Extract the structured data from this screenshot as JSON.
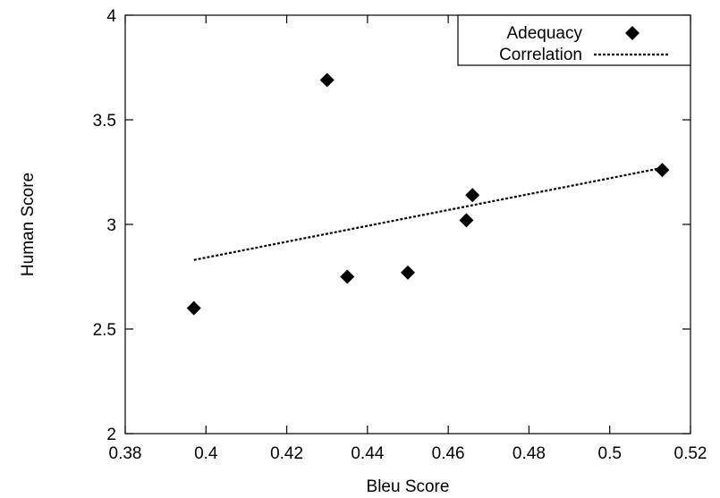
{
  "chart_data": {
    "type": "scatter",
    "xlabel": "Bleu Score",
    "ylabel": "Human Score",
    "xlim": [
      0.38,
      0.52
    ],
    "ylim": [
      2,
      4
    ],
    "x_ticks": [
      0.38,
      0.4,
      0.42,
      0.44,
      0.46,
      0.48,
      0.5,
      0.52
    ],
    "x_tick_labels": [
      "0.38",
      "0.4",
      "0.42",
      "0.44",
      "0.46",
      "0.48",
      "0.5",
      "0.52"
    ],
    "y_ticks": [
      2,
      2.5,
      3,
      3.5,
      4
    ],
    "y_tick_labels": [
      "2",
      "2.5",
      "3",
      "3.5",
      "4"
    ],
    "grid": false,
    "legend_position": "top-right",
    "series": [
      {
        "name": "Adequacy",
        "marker": "diamond",
        "color": "#000000",
        "points": [
          {
            "x": 0.397,
            "y": 2.6
          },
          {
            "x": 0.43,
            "y": 3.69
          },
          {
            "x": 0.435,
            "y": 2.75
          },
          {
            "x": 0.45,
            "y": 2.77
          },
          {
            "x": 0.4645,
            "y": 3.02
          },
          {
            "x": 0.466,
            "y": 3.14
          },
          {
            "x": 0.513,
            "y": 3.26
          }
        ]
      },
      {
        "name": "Correlation",
        "style": "dashed-line",
        "color": "#000000",
        "points": [
          {
            "x": 0.397,
            "y": 2.83
          },
          {
            "x": 0.513,
            "y": 3.27
          }
        ]
      }
    ]
  }
}
